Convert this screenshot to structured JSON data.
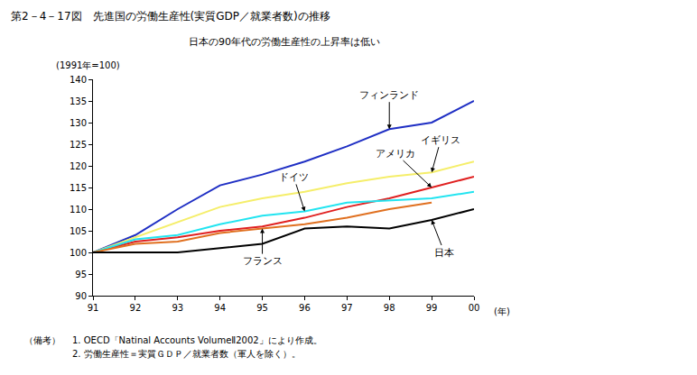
{
  "chart_data": {
    "type": "line",
    "title": "第2－4－17図　先進国の労働生産性(実質GDP／就業者数)の推移",
    "subtitle": "日本の90年代の労働生産性の上昇率は低い",
    "y_label": "(1991年=100)",
    "x_label": "(年)",
    "categories": [
      "91",
      "92",
      "93",
      "94",
      "95",
      "96",
      "97",
      "98",
      "99",
      "00"
    ],
    "series": [
      {
        "name": "フィンランド",
        "color": "#1f2fc4",
        "values": [
          100,
          104,
          110,
          115.5,
          118,
          121,
          124.5,
          128.5,
          130,
          135
        ]
      },
      {
        "name": "イギリス",
        "color": "#f5ee6a",
        "values": [
          100,
          103.5,
          107,
          110.5,
          112.5,
          114,
          116,
          117.5,
          118.5,
          121
        ]
      },
      {
        "name": "アメリカ",
        "color": "#e02020",
        "values": [
          100,
          102.5,
          103.5,
          105,
          106,
          108,
          110.5,
          112.5,
          115,
          117.5
        ]
      },
      {
        "name": "ドイツ",
        "color": "#22e4f0",
        "values": [
          100,
          103,
          104,
          106.5,
          108.5,
          109.5,
          111.5,
          112,
          112.5,
          114
        ]
      },
      {
        "name": "フランス",
        "color": "#e07020",
        "values": [
          100,
          102,
          102.5,
          104.5,
          105.5,
          106.5,
          108,
          110,
          111.5,
          null
        ]
      },
      {
        "name": "日本",
        "color": "#000000",
        "values": [
          100,
          100,
          100,
          101,
          102,
          105.5,
          106,
          105.5,
          107.5,
          110
        ]
      }
    ],
    "ylim": [
      90,
      140
    ],
    "yticks": [
      90,
      95,
      100,
      105,
      110,
      115,
      120,
      125,
      130,
      135,
      140
    ],
    "grid": false,
    "notes_label": "（備考）",
    "notes": [
      "1. OECD「Natinal Accounts VolumeⅡ2002」により作成。",
      "2. 労働生産性＝実質ＧＤＰ／就業者数（軍人を除く）。"
    ]
  }
}
